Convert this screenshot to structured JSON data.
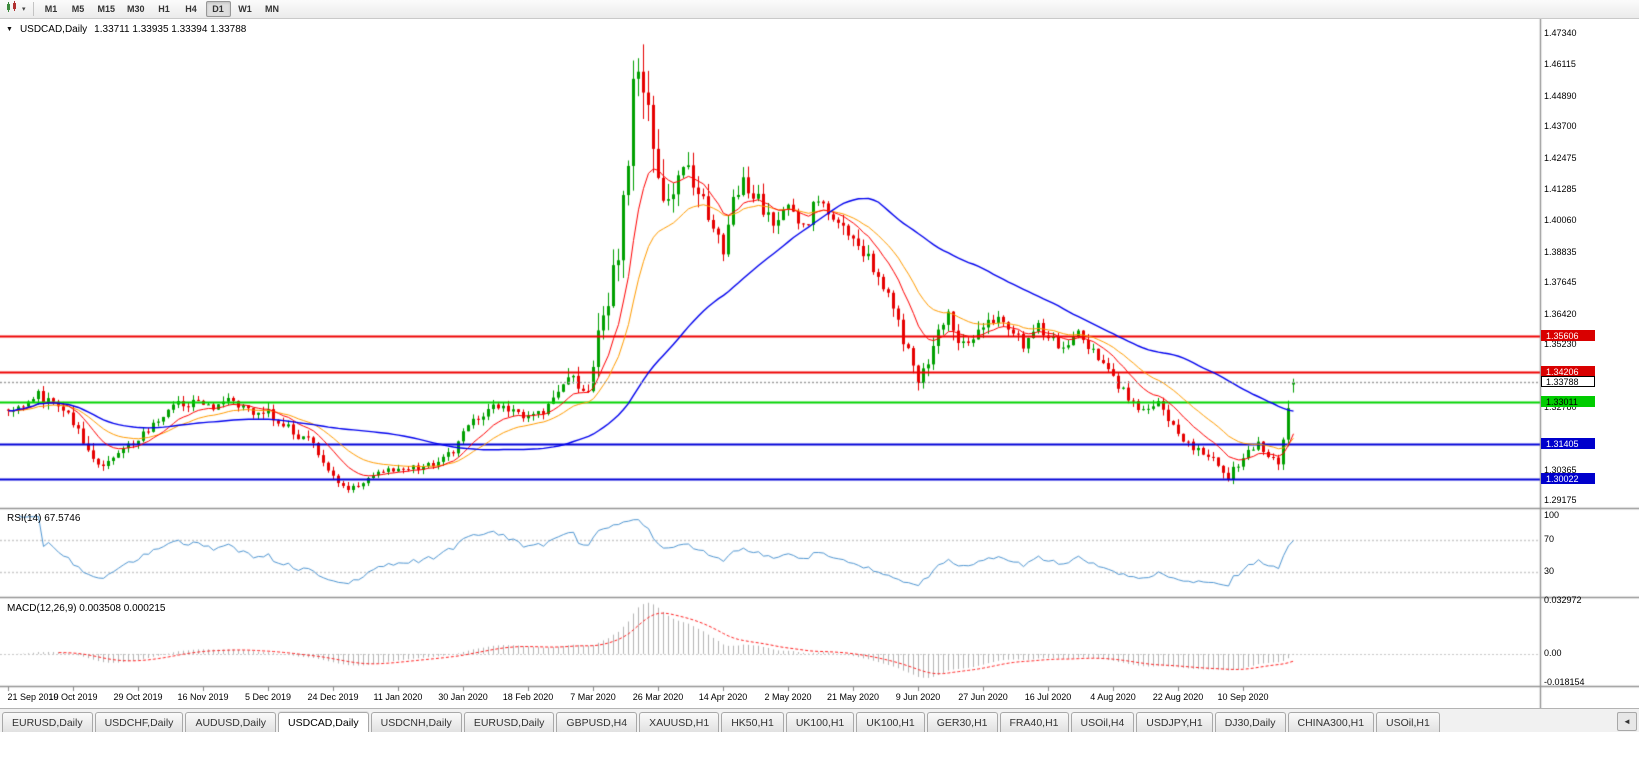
{
  "toolbar": {
    "timeframes": [
      "M1",
      "M5",
      "M15",
      "M30",
      "H1",
      "H4",
      "D1",
      "W1",
      "MN"
    ],
    "active_timeframe": "D1"
  },
  "chart": {
    "title_symbol": "USDCAD,Daily",
    "title_ohlc": "1.33711 1.33935 1.33394 1.33788"
  },
  "indicators": {
    "rsi_label": "RSI(14) 67.5746",
    "macd_label": "MACD(12,26,9) 0.003508 0.000215"
  },
  "chart_data": {
    "type": "candlestick",
    "symbol": "USDCAD",
    "timeframe": "Daily",
    "current_bar": {
      "open": 1.33711,
      "high": 1.33935,
      "low": 1.33394,
      "close": 1.33788
    },
    "bars_total": 258,
    "price_range": [
      1.2895,
      1.476
    ],
    "price_axis_ticks": [
      "1.47340",
      "1.46115",
      "1.44890",
      "1.43700",
      "1.42475",
      "1.41285",
      "1.40060",
      "1.38835",
      "1.37645",
      "1.36420",
      "1.35230",
      "1.32780",
      "1.30365",
      "1.29175"
    ],
    "date_axis_labels": [
      "21 Sep 2019",
      "10 Oct 2019",
      "29 Oct 2019",
      "16 Nov 2019",
      "5 Dec 2019",
      "24 Dec 2019",
      "11 Jan 2020",
      "30 Jan 2020",
      "18 Feb 2020",
      "7 Mar 2020",
      "26 Mar 2020",
      "14 Apr 2020",
      "2 May 2020",
      "21 May 2020",
      "9 Jun 2020",
      "27 Jun 2020",
      "16 Jul 2020",
      "4 Aug 2020",
      "22 Aug 2020",
      "10 Sep 2020"
    ],
    "hlines": [
      {
        "price": 1.35606,
        "label": "1.35606",
        "color": "#ee0000",
        "label_bg": "#d90000",
        "label_fg": "#ffffff",
        "width": 2
      },
      {
        "price": 1.34206,
        "label": "1.34206",
        "color": "#ee0000",
        "label_bg": "#d90000",
        "label_fg": "#ffffff",
        "width": 2
      },
      {
        "price": 1.33011,
        "label": "1.33011",
        "color": "#00d400",
        "label_bg": "#00cc00",
        "label_fg": "#000000",
        "width": 2
      },
      {
        "price": 1.31405,
        "label": "1.31405",
        "color": "#0000d8",
        "label_bg": "#0000cc",
        "label_fg": "#ffffff",
        "width": 2
      },
      {
        "price": 1.30022,
        "label": "1.30022",
        "color": "#0000d8",
        "label_bg": "#0000cc",
        "label_fg": "#ffffff",
        "width": 2
      }
    ],
    "current_price_line": {
      "price": 1.33788,
      "label": "1.33788"
    },
    "colors": {
      "up": "#00a000",
      "down": "#e60000"
    },
    "moving_averages": [
      {
        "name": "fast",
        "period": 10,
        "type": "ema",
        "color": "#ff0000",
        "width": 1
      },
      {
        "name": "medium",
        "period": 20,
        "type": "ema",
        "color": "#ff9c00",
        "width": 1
      },
      {
        "name": "slow",
        "period": 50,
        "type": "sma",
        "color": "#0000ee",
        "width": 1.4
      }
    ],
    "close_waypoints": [
      [
        0,
        1.3265,
        0.004
      ],
      [
        3,
        1.329,
        0.004
      ],
      [
        6,
        1.3325,
        0.0048
      ],
      [
        9,
        1.3308,
        0.0042
      ],
      [
        12,
        1.3245,
        0.004
      ],
      [
        14,
        1.318,
        0.0048
      ],
      [
        17,
        1.3072,
        0.005
      ],
      [
        19,
        1.3058,
        0.004
      ],
      [
        22,
        1.312,
        0.004
      ],
      [
        26,
        1.3165,
        0.0038
      ],
      [
        30,
        1.3235,
        0.0038
      ],
      [
        34,
        1.3292,
        0.0038
      ],
      [
        37,
        1.3302,
        0.0036
      ],
      [
        40,
        1.3278,
        0.0036
      ],
      [
        44,
        1.3305,
        0.0036
      ],
      [
        48,
        1.3272,
        0.0038
      ],
      [
        52,
        1.3262,
        0.004
      ],
      [
        56,
        1.3205,
        0.004
      ],
      [
        60,
        1.3148,
        0.004
      ],
      [
        63,
        1.3082,
        0.0038
      ],
      [
        65,
        1.3015,
        0.0034
      ],
      [
        68,
        1.2968,
        0.003
      ],
      [
        71,
        1.2992,
        0.0028
      ],
      [
        74,
        1.3022,
        0.003
      ],
      [
        78,
        1.3052,
        0.0032
      ],
      [
        82,
        1.3044,
        0.0028
      ],
      [
        86,
        1.3068,
        0.003
      ],
      [
        89,
        1.3108,
        0.0034
      ],
      [
        91,
        1.3182,
        0.0038
      ],
      [
        94,
        1.3242,
        0.0038
      ],
      [
        97,
        1.3288,
        0.004
      ],
      [
        101,
        1.3268,
        0.0036
      ],
      [
        104,
        1.3246,
        0.0036
      ],
      [
        107,
        1.3272,
        0.0038
      ],
      [
        110,
        1.3322,
        0.0052
      ],
      [
        112,
        1.3408,
        0.007
      ],
      [
        114,
        1.3382,
        0.0062
      ],
      [
        116,
        1.3345,
        0.006
      ],
      [
        117,
        1.3425,
        0.008
      ],
      [
        118,
        1.3565,
        0.0115
      ],
      [
        119,
        1.366,
        0.0115
      ],
      [
        120,
        1.3722,
        0.0115
      ],
      [
        121,
        1.3812,
        0.0125
      ],
      [
        122,
        1.3905,
        0.0135
      ],
      [
        123,
        1.4052,
        0.015
      ],
      [
        124,
        1.4222,
        0.0165
      ],
      [
        125,
        1.4478,
        0.0185
      ],
      [
        126,
        1.46,
        0.021
      ],
      [
        127,
        1.4425,
        0.0195
      ],
      [
        128,
        1.4532,
        0.0175
      ],
      [
        129,
        1.4332,
        0.0155
      ],
      [
        130,
        1.4182,
        0.014
      ],
      [
        132,
        1.4062,
        0.012
      ],
      [
        134,
        1.4152,
        0.011
      ],
      [
        136,
        1.4222,
        0.01
      ],
      [
        138,
        1.4122,
        0.0092
      ],
      [
        140,
        1.4032,
        0.0085
      ],
      [
        143,
        1.3908,
        0.008
      ],
      [
        145,
        1.4078,
        0.0085
      ],
      [
        147,
        1.4148,
        0.008
      ],
      [
        150,
        1.4082,
        0.0075
      ],
      [
        153,
        1.4012,
        0.007
      ],
      [
        156,
        1.4068,
        0.0068
      ],
      [
        159,
        1.3982,
        0.0066
      ],
      [
        162,
        1.4098,
        0.0066
      ],
      [
        165,
        1.4022,
        0.0062
      ],
      [
        168,
        1.3952,
        0.006
      ],
      [
        170,
        1.3912,
        0.006
      ],
      [
        172,
        1.3872,
        0.0058
      ],
      [
        174,
        1.3772,
        0.0058
      ],
      [
        176,
        1.3722,
        0.0056
      ],
      [
        178,
        1.3602,
        0.0058
      ],
      [
        180,
        1.3502,
        0.0058
      ],
      [
        182,
        1.3392,
        0.0066
      ],
      [
        184,
        1.3472,
        0.0075
      ],
      [
        186,
        1.3582,
        0.0075
      ],
      [
        188,
        1.3648,
        0.0068
      ],
      [
        190,
        1.3552,
        0.0064
      ],
      [
        192,
        1.3542,
        0.0058
      ],
      [
        195,
        1.3602,
        0.0055
      ],
      [
        198,
        1.3648,
        0.0052
      ],
      [
        200,
        1.3592,
        0.005
      ],
      [
        203,
        1.3532,
        0.005
      ],
      [
        206,
        1.3598,
        0.005
      ],
      [
        208,
        1.3562,
        0.0048
      ],
      [
        211,
        1.3512,
        0.0048
      ],
      [
        214,
        1.3568,
        0.0046
      ],
      [
        217,
        1.3502,
        0.0046
      ],
      [
        220,
        1.3425,
        0.0046
      ],
      [
        221,
        1.3385,
        0.0044
      ],
      [
        224,
        1.3322,
        0.0042
      ],
      [
        227,
        1.3262,
        0.0042
      ],
      [
        230,
        1.3292,
        0.004
      ],
      [
        233,
        1.3222,
        0.004
      ],
      [
        234,
        1.3185,
        0.004
      ],
      [
        237,
        1.3122,
        0.004
      ],
      [
        240,
        1.3098,
        0.004
      ],
      [
        242,
        1.3042,
        0.0038
      ],
      [
        244,
        1.3012,
        0.0036
      ],
      [
        246,
        1.3062,
        0.0036
      ],
      [
        248,
        1.3112,
        0.0036
      ],
      [
        250,
        1.3142,
        0.0036
      ],
      [
        252,
        1.3092,
        0.0036
      ],
      [
        254,
        1.3062,
        0.004
      ],
      [
        255,
        1.3155,
        0.0065
      ],
      [
        256,
        1.3295,
        0.007
      ],
      [
        257,
        1.33788,
        0.005
      ]
    ],
    "rsi": {
      "period": 14,
      "current": 67.5746,
      "levels": [
        70,
        30
      ],
      "axis_labels": [
        "100",
        "70",
        "30"
      ],
      "color": "#4f96d2",
      "level_color": "#c8c8c8"
    },
    "macd": {
      "fast": 12,
      "slow": 26,
      "signal": 9,
      "current_macd": 0.003508,
      "current_signal": 0.000215,
      "axis_labels": [
        "0.032972",
        "0.00",
        "-0.018154"
      ],
      "axis_values": [
        0.032972,
        0,
        -0.018154
      ],
      "range": [
        -0.0195,
        0.0345
      ],
      "histogram_color": "#b4b4b4",
      "signal_color": "#ff2222"
    }
  },
  "tabs": {
    "items": [
      "EURUSD,Daily",
      "USDCHF,Daily",
      "AUDUSD,Daily",
      "USDCAD,Daily",
      "USDCNH,Daily",
      "EURUSD,Daily",
      "GBPUSD,H4",
      "XAUUSD,H1",
      "HK50,H1",
      "UK100,H1",
      "UK100,H1",
      "GER30,H1",
      "FRA40,H1",
      "USOil,H4",
      "USDJPY,H1",
      "DJ30,Daily",
      "CHINA300,H1",
      "USOil,H1"
    ],
    "active_index": 3,
    "scroll_left_label": "◄"
  }
}
